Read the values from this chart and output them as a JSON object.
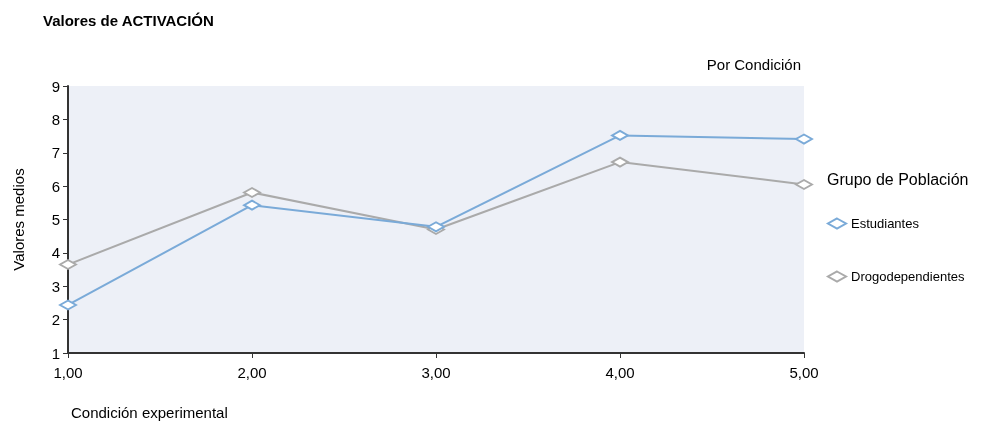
{
  "chart_data": {
    "type": "line",
    "title": "Valores de ACTIVACIÓN",
    "subtitle": "Por Condición",
    "xlabel": "Condición experimental",
    "ylabel": "Valores medios",
    "legend_title": "Grupo de Población",
    "x": [
      1,
      2,
      3,
      4,
      5
    ],
    "series": [
      {
        "name": "Estudiantes",
        "color": "#7aaad8",
        "values": [
          2.44,
          5.43,
          4.78,
          7.52,
          7.41
        ]
      },
      {
        "name": "Drogodependientes",
        "color": "#aaaaaa",
        "values": [
          3.65,
          5.81,
          4.7,
          6.72,
          6.05
        ]
      }
    ],
    "xlim": [
      1,
      5
    ],
    "xticks": [
      {
        "value": 1,
        "label": "1,00"
      },
      {
        "value": 2,
        "label": "2,00"
      },
      {
        "value": 3,
        "label": "3,00"
      },
      {
        "value": 4,
        "label": "4,00"
      },
      {
        "value": 5,
        "label": "5,00"
      }
    ],
    "ylim": [
      1,
      9
    ],
    "yticks": [
      1,
      2,
      3,
      4,
      5,
      6,
      7,
      8,
      9
    ],
    "grid": false,
    "legend": "right",
    "marker": "diamond",
    "line_style": "solid"
  }
}
